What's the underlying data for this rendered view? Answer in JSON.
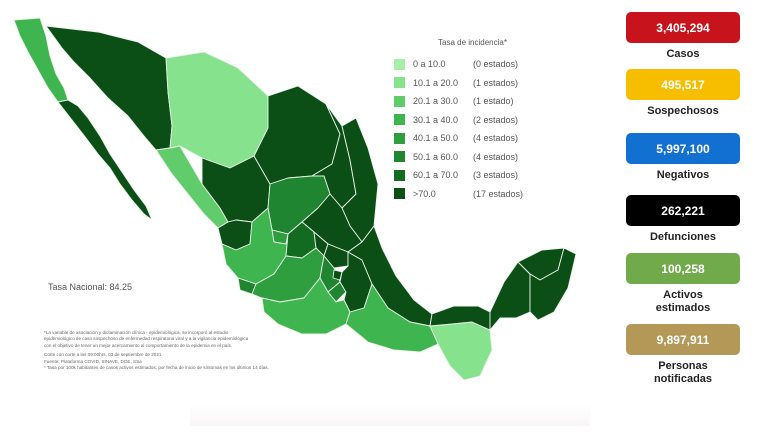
{
  "map": {
    "legend_title": "Tasa de incidencia*",
    "legend": [
      {
        "range": "0   a  10.0",
        "count": "(0 estados)",
        "color": "#a8f0a8"
      },
      {
        "range": "10.1 a 20.0",
        "count": "(1 estados)",
        "color": "#86e28c"
      },
      {
        "range": "20.1 a 30.0",
        "count": "(1 estado)",
        "color": "#61cc6b"
      },
      {
        "range": "30.1 a 40.0",
        "count": "(2 estados)",
        "color": "#3fb54f"
      },
      {
        "range": "40.1 a 50.0",
        "count": "(4 estados)",
        "color": "#2e9e3f"
      },
      {
        "range": "50.1 a 60.0",
        "count": "(4 estados)",
        "color": "#1f8530"
      },
      {
        "range": "60.1 a 70.0",
        "count": "(3 estados)",
        "color": "#136b22"
      },
      {
        "range": ">70.0",
        "count": "(17 estados)",
        "color": "#0b4f17"
      }
    ],
    "tasa_nacional": "Tasa Nacional: 84.25",
    "footnotes": [
      "*La variable de asociación y dictaminación clínica - epidemiológica, se incorporó al estudio",
      "epidemiológico de caso sospechoso de enfermedad respiratoria viral y a la vigilancia epidemiológica",
      "con el objetivo de tener un mejor acercamiento al comportamiento de la epidemia en el país.",
      "Corte con corte a las 09:00hrs, 03 de septiembre de 2021",
      "Fuente: Plataforma COVID, SINAVE, DGE, SSa",
      "* Tasa por 100k habitantes de casos activos estimados, por fecha de inicio de síntomas en los últimos 14 días."
    ]
  },
  "stats": [
    {
      "value": "3,405,294",
      "label": "Casos",
      "color": "#c7141c"
    },
    {
      "value": "495,517",
      "label": "Sospechosos",
      "color": "#f7be00"
    },
    {
      "value": "5,997,100",
      "label": "Negativos",
      "color": "#1271d0"
    },
    {
      "value": "262,221",
      "label": "Defunciones",
      "color": "#000000"
    },
    {
      "value": "100,258",
      "label": "Activos estimados",
      "color": "#70aa4b"
    },
    {
      "value": "9,897,911",
      "label": "Personas notificadas",
      "color": "#b39858"
    }
  ]
}
